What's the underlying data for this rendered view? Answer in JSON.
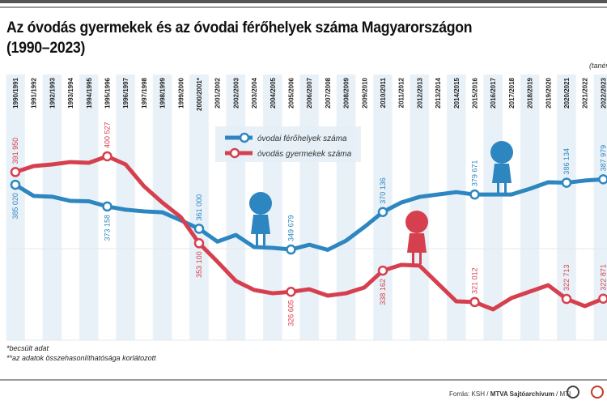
{
  "title": "Az óvodás gyermekek és az óvodai férőhelyek száma Magyarországon (1990–2023)",
  "unit_label": "(tanév)",
  "notes": [
    "*becsült adat",
    "**az adatok összehasonlíthatósága korlátozott"
  ],
  "source": {
    "prefix": "Forrás: KSH / ",
    "bold": "MTVA Sajtóarchívum",
    "suffix": " / MTI"
  },
  "colors": {
    "places": "#2e86c1",
    "children": "#d6404e",
    "column_shade": "#e8f1f8"
  },
  "chart_data": {
    "type": "line",
    "title": "Az óvodás gyermekek és az óvodai férőhelyek száma Magyarországon (1990–2023)",
    "xlabel": "(tanév)",
    "ylabel": "",
    "categories": [
      "1990/1991",
      "1991/1992",
      "1992/1993",
      "1993/1994",
      "1994/1995",
      "1995/1996",
      "1996/1997",
      "1997/1998",
      "1998/1999",
      "1999/2000",
      "2000/2001*",
      "2001/2002",
      "2002/2003",
      "2003/2004",
      "2004/2005",
      "2005/2006",
      "2006/2007",
      "2007/2008",
      "2008/2009",
      "2009/2010",
      "2010/2011",
      "2011/2012",
      "2012/2013",
      "2013/2014",
      "2014/2015",
      "2015/2016",
      "2016/2017",
      "2017/2018",
      "2018/2019",
      "2019/2020",
      "2020/2021",
      "2021/2022",
      "2022/2023"
    ],
    "ylim": [
      300000,
      410000
    ],
    "grid": "vertical-bands",
    "legend_placement": "top-center",
    "labeled_indices": [
      0,
      5,
      10,
      15,
      20,
      25,
      30,
      32
    ],
    "series": [
      {
        "name": "óvodai férőhelyek száma",
        "color": "#2e86c1",
        "values": [
          385020,
          378900,
          378500,
          376200,
          376000,
          373158,
          371400,
          370500,
          370000,
          365600,
          361000,
          354000,
          357600,
          351000,
          350600,
          349679,
          352300,
          349500,
          354500,
          362000,
          370136,
          375300,
          378400,
          379700,
          381000,
          379671,
          379700,
          379700,
          382800,
          386400,
          386134,
          387300,
          387979
        ],
        "labels": [
          "385 020",
          "373 158",
          "361 000",
          "349 679",
          "370 136",
          "379 671",
          "386 134",
          "387 979"
        ]
      },
      {
        "name": "óvodás gyermekek száma",
        "color": "#d6404e",
        "values": [
          391950,
          395200,
          396100,
          397400,
          397000,
          400527,
          396100,
          384200,
          375300,
          367400,
          353100,
          343000,
          332500,
          327600,
          325800,
          326605,
          328000,
          324500,
          325800,
          329000,
          338162,
          341300,
          340900,
          331100,
          321400,
          321012,
          317000,
          323200,
          326700,
          330200,
          322713,
          318800,
          322871
        ],
        "labels": [
          "391 950",
          "400 527",
          "353 100",
          "326 605",
          "338 162",
          "321 012",
          "322 713",
          "322 871"
        ]
      }
    ]
  }
}
